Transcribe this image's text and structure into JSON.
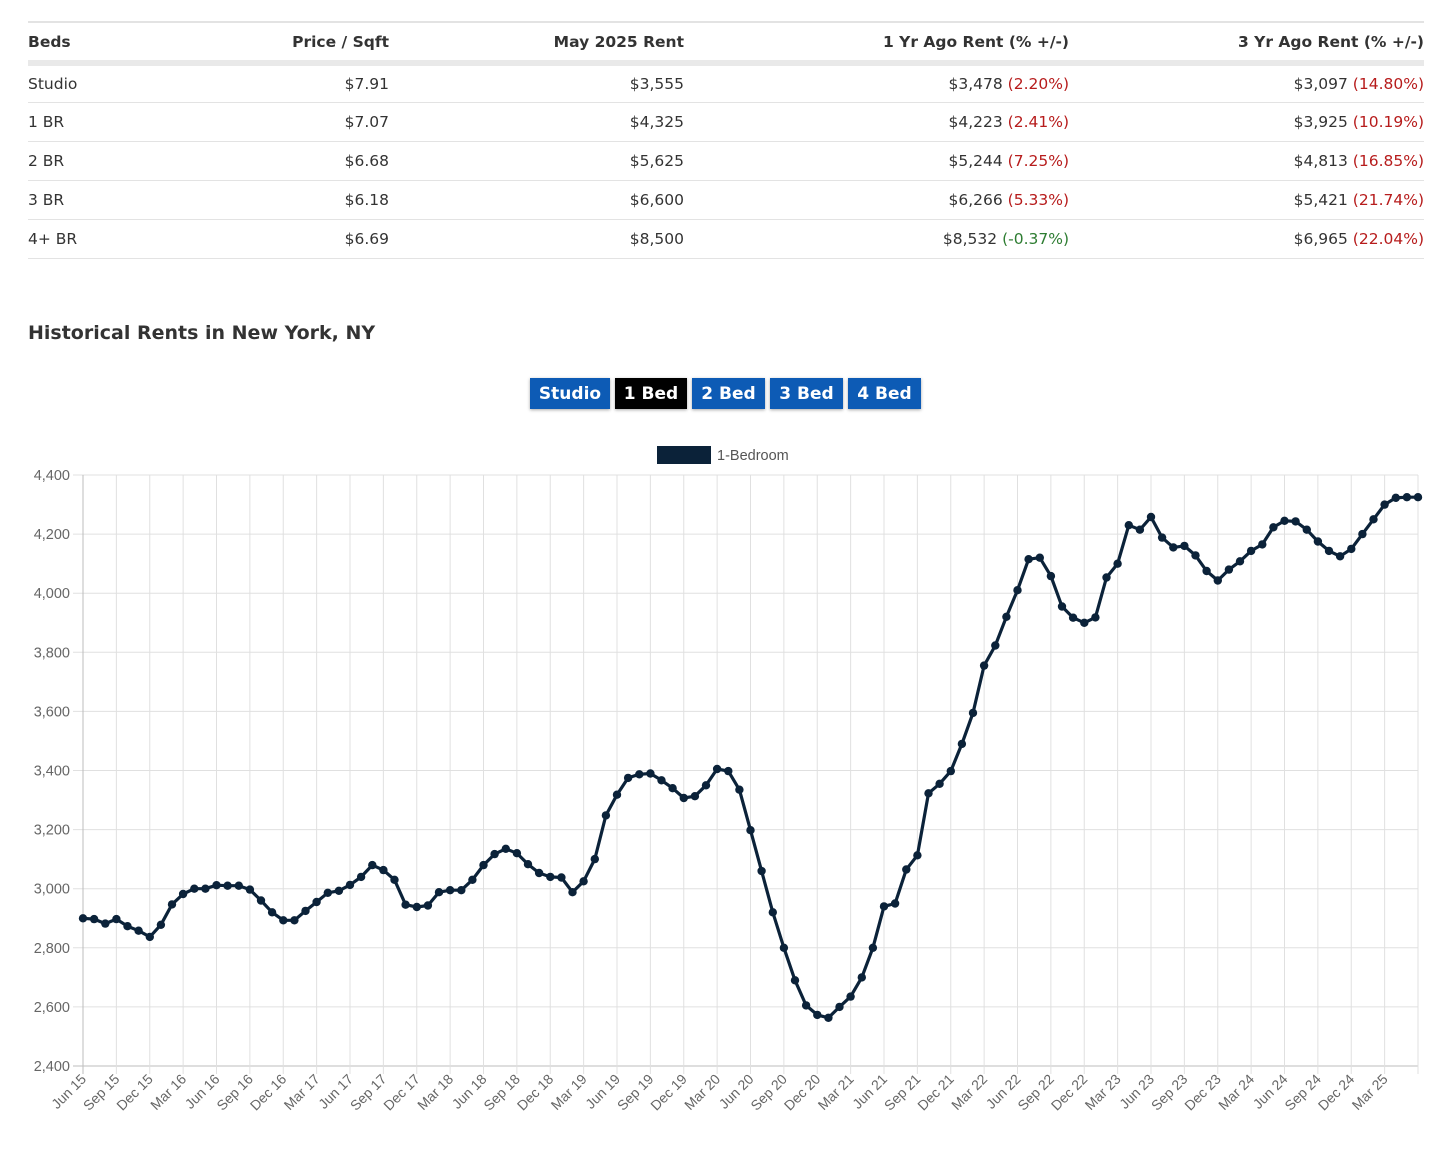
{
  "table": {
    "headers": [
      "Beds",
      "Price / Sqft",
      "May 2025 Rent",
      "1 Yr Ago Rent (% +/-)",
      "3 Yr Ago Rent (% +/-)"
    ],
    "rows": [
      {
        "beds": "Studio",
        "ppsf": "$7.91",
        "current": "$3,555",
        "yr1": "$3,478",
        "yr1_pct": "(2.20%)",
        "yr1_up": true,
        "yr3": "$3,097",
        "yr3_pct": "(14.80%)",
        "yr3_up": true
      },
      {
        "beds": "1 BR",
        "ppsf": "$7.07",
        "current": "$4,325",
        "yr1": "$4,223",
        "yr1_pct": "(2.41%)",
        "yr1_up": true,
        "yr3": "$3,925",
        "yr3_pct": "(10.19%)",
        "yr3_up": true
      },
      {
        "beds": "2 BR",
        "ppsf": "$6.68",
        "current": "$5,625",
        "yr1": "$5,244",
        "yr1_pct": "(7.25%)",
        "yr1_up": true,
        "yr3": "$4,813",
        "yr3_pct": "(16.85%)",
        "yr3_up": true
      },
      {
        "beds": "3 BR",
        "ppsf": "$6.18",
        "current": "$6,600",
        "yr1": "$6,266",
        "yr1_pct": "(5.33%)",
        "yr1_up": true,
        "yr3": "$5,421",
        "yr3_pct": "(21.74%)",
        "yr3_up": true
      },
      {
        "beds": "4+ BR",
        "ppsf": "$6.69",
        "current": "$8,500",
        "yr1": "$8,532",
        "yr1_pct": "(-0.37%)",
        "yr1_up": false,
        "yr3": "$6,965",
        "yr3_pct": "(22.04%)",
        "yr3_up": true
      }
    ]
  },
  "section_title": "Historical Rents in New York, NY",
  "bed_buttons": [
    {
      "label": "Studio",
      "active": false
    },
    {
      "label": "1 Bed",
      "active": true
    },
    {
      "label": "2 Bed",
      "active": false
    },
    {
      "label": "3 Bed",
      "active": false
    },
    {
      "label": "4 Bed",
      "active": false
    }
  ],
  "colors": {
    "line": "#0b2239",
    "button": "#0d5bb5",
    "button_active": "#000000",
    "increase": "#b71c1c",
    "decrease": "#2e7d32"
  },
  "chart_data": {
    "type": "line",
    "legend": "1-Bedroom",
    "legend_position": "top-center",
    "grid": true,
    "ylim": [
      2400,
      4400
    ],
    "yticks": [
      "2,400",
      "2,600",
      "2,800",
      "3,000",
      "3,200",
      "3,400",
      "3,600",
      "3,800",
      "4,000",
      "4,200",
      "4,400"
    ],
    "x_labels": [
      "Jun 15",
      "Sep 15",
      "Dec 15",
      "Mar 16",
      "Jun 16",
      "Sep 16",
      "Dec 16",
      "Mar 17",
      "Jun 17",
      "Sep 17",
      "Dec 17",
      "Mar 18",
      "Jun 18",
      "Sep 18",
      "Dec 18",
      "Mar 19",
      "Jun 19",
      "Sep 19",
      "Dec 19",
      "Mar 20",
      "Jun 20",
      "Sep 20",
      "Dec 20",
      "Mar 21",
      "Jun 21",
      "Sep 21",
      "Dec 21",
      "Mar 22",
      "Jun 22",
      "Sep 22",
      "Dec 22",
      "Mar 23",
      "Jun 23",
      "Sep 23",
      "Dec 23",
      "Mar 24",
      "Jun 24",
      "Sep 24",
      "Dec 24",
      "Mar 25"
    ],
    "x_start": "Jun 15",
    "x_end": "May 25",
    "series": [
      {
        "name": "1-Bedroom",
        "values": [
          2900,
          2897,
          2882,
          2897,
          2873,
          2858,
          2837,
          2878,
          2947,
          2982,
          3000,
          3000,
          3012,
          3010,
          3010,
          2997,
          2960,
          2920,
          2893,
          2893,
          2925,
          2955,
          2986,
          2993,
          3013,
          3040,
          3080,
          3063,
          3030,
          2946,
          2938,
          2943,
          2988,
          2995,
          2995,
          3030,
          3080,
          3117,
          3135,
          3120,
          3083,
          3053,
          3040,
          3038,
          2988,
          3025,
          3100,
          3248,
          3318,
          3375,
          3387,
          3390,
          3367,
          3340,
          3307,
          3313,
          3350,
          3405,
          3398,
          3335,
          3198,
          3060,
          2920,
          2800,
          2690,
          2605,
          2573,
          2563,
          2600,
          2635,
          2700,
          2800,
          2940,
          2950,
          3065,
          3113,
          3323,
          3355,
          3398,
          3490,
          3595,
          3755,
          3823,
          3920,
          4010,
          4115,
          4120,
          4058,
          3955,
          3917,
          3900,
          3918,
          4053,
          4100,
          4230,
          4215,
          4258,
          4188,
          4155,
          4160,
          4128,
          4075,
          4043,
          4080,
          4108,
          4143,
          4165,
          4223,
          4245,
          4243,
          4215,
          4175,
          4143,
          4125,
          4150,
          4200,
          4250,
          4300,
          4323,
          4325,
          4325
        ]
      }
    ]
  }
}
